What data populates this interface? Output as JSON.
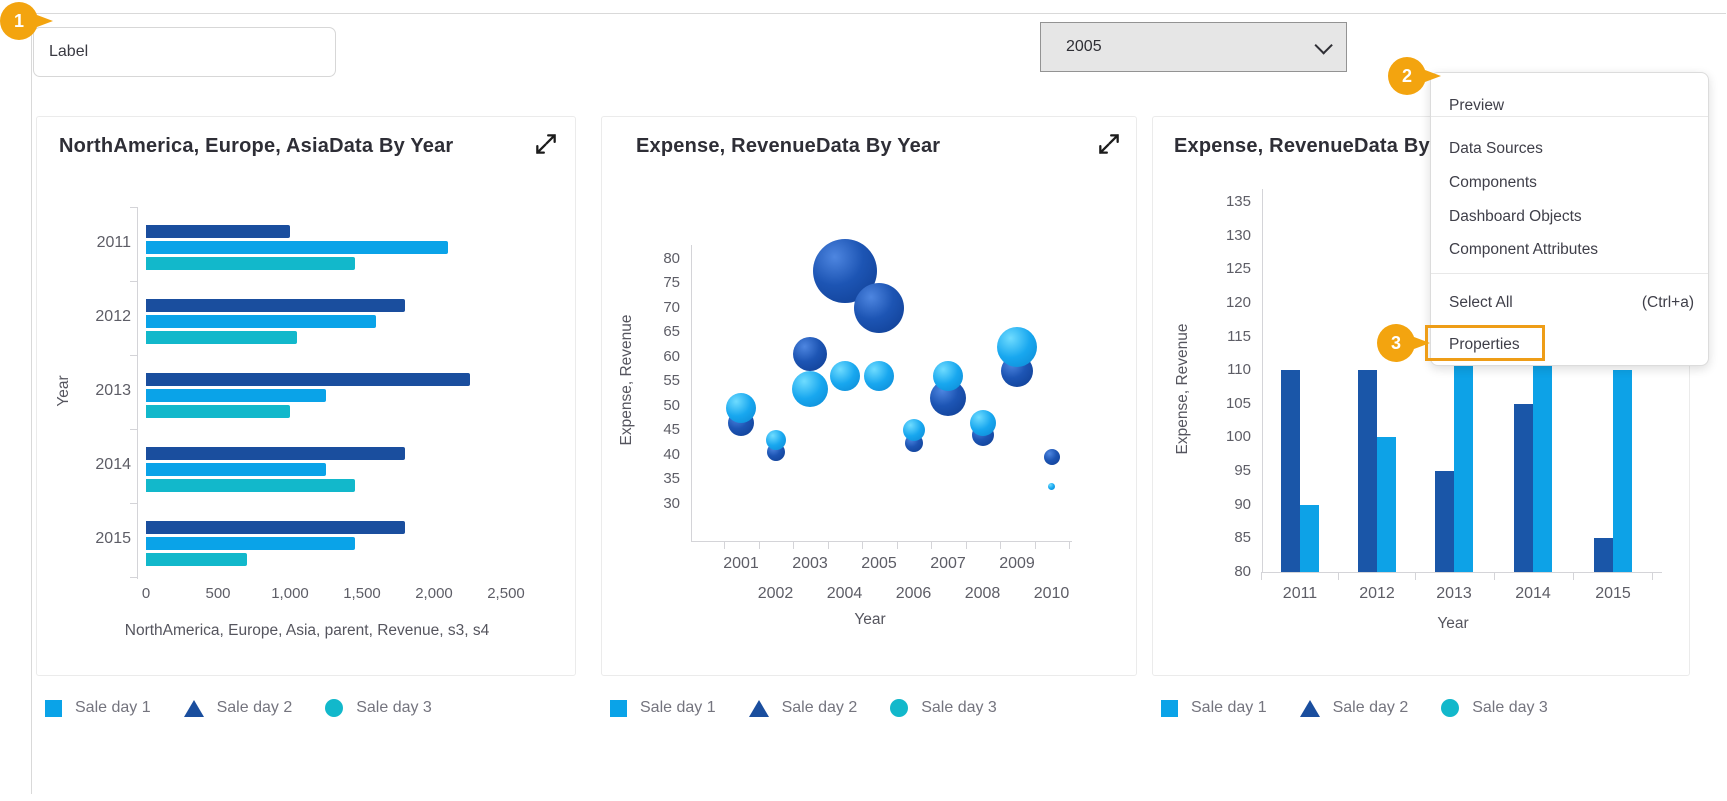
{
  "annotations": {
    "step1": "1",
    "step2": "2",
    "step3": "3"
  },
  "label_widget": {
    "text": "Label"
  },
  "year_dropdown": {
    "value": "2005",
    "options": [
      "2005"
    ]
  },
  "context_menu": {
    "items_top": [
      {
        "label": "Preview"
      }
    ],
    "items_middle": [
      {
        "label": "Data Sources"
      },
      {
        "label": "Components"
      },
      {
        "label": "Dashboard Objects"
      },
      {
        "label": "Component Attributes"
      }
    ],
    "select_all": {
      "label": "Select All",
      "shortcut": "(Ctrl+a)"
    },
    "properties": {
      "label": "Properties",
      "highlighted": true,
      "highlight_color": "#ee9d17"
    }
  },
  "legend": {
    "items": [
      {
        "label": "Sale day 1",
        "shape": "square",
        "color": "#0aa3e8"
      },
      {
        "label": "Sale day 2",
        "shape": "triangle",
        "color": "#1a4e9e"
      },
      {
        "label": "Sale day 3",
        "shape": "circle",
        "color": "#12b8cb"
      }
    ]
  },
  "chart_data": [
    {
      "type": "bar",
      "orientation": "horizontal",
      "title": "NorthAmerica, Europe, AsiaData By Year",
      "categories": [
        "2011",
        "2012",
        "2013",
        "2014",
        "2015"
      ],
      "series": [
        {
          "name": "Sale day 2",
          "color": "#1a4e9e",
          "values": [
            1000,
            1800,
            2250,
            1800,
            1800
          ]
        },
        {
          "name": "Sale day 1",
          "color": "#0aa3e8",
          "values": [
            2100,
            1600,
            1250,
            1250,
            1450
          ]
        },
        {
          "name": "Sale day 3",
          "color": "#12b8cb",
          "values": [
            1450,
            1050,
            1000,
            1450,
            700
          ]
        }
      ],
      "xlabel": "NorthAmerica, Europe, Asia, parent, Revenue, s3, s4",
      "ylabel": "Year",
      "xticks": [
        "0",
        "500",
        "1,000",
        "1,500",
        "2,000",
        "2,500"
      ],
      "xlim": [
        0,
        2500
      ],
      "grid": false,
      "legend_position": "bottom"
    },
    {
      "type": "bubble",
      "title": "Expense, RevenueData By Year",
      "xlabel": "Year",
      "ylabel": "Expense, Revenue",
      "x": [
        2001,
        2002,
        2003,
        2004,
        2005,
        2006,
        2007,
        2008,
        2009,
        2010
      ],
      "yticks": [
        80,
        75,
        70,
        65,
        60,
        55,
        50,
        45,
        40,
        35,
        30
      ],
      "ylim": [
        30,
        80
      ],
      "series": [
        {
          "name": "Sale day 2",
          "color": "#1a4e9e",
          "points": [
            {
              "x": 2001,
              "y": 46.5,
              "r": 13
            },
            {
              "x": 2002,
              "y": 40.5,
              "r": 9
            },
            {
              "x": 2003,
              "y": 60.5,
              "r": 17
            },
            {
              "x": 2004,
              "y": 77.5,
              "r": 32
            },
            {
              "x": 2005,
              "y": 70,
              "r": 25
            },
            {
              "x": 2006,
              "y": 42.5,
              "r": 9
            },
            {
              "x": 2007,
              "y": 51.5,
              "r": 18
            },
            {
              "x": 2008,
              "y": 44,
              "r": 11
            },
            {
              "x": 2009,
              "y": 57,
              "r": 16
            },
            {
              "x": 2010,
              "y": 39.5,
              "r": 8
            }
          ]
        },
        {
          "name": "Sale day 1",
          "color": "#0aa3e8",
          "points": [
            {
              "x": 2001,
              "y": 49.5,
              "r": 15
            },
            {
              "x": 2002,
              "y": 43,
              "r": 10
            },
            {
              "x": 2003,
              "y": 53.5,
              "r": 18
            },
            {
              "x": 2004,
              "y": 56,
              "r": 15
            },
            {
              "x": 2005,
              "y": 56,
              "r": 15
            },
            {
              "x": 2006,
              "y": 45,
              "r": 11
            },
            {
              "x": 2007,
              "y": 56,
              "r": 15
            },
            {
              "x": 2008,
              "y": 46.5,
              "r": 13
            },
            {
              "x": 2009,
              "y": 62,
              "r": 20
            },
            {
              "x": 2010,
              "y": 33.5,
              "r": 3.5
            }
          ]
        }
      ],
      "grid": false,
      "legend_position": "bottom"
    },
    {
      "type": "bar",
      "orientation": "vertical",
      "title": "Expense, RevenueData By Year",
      "title_note": "right part of title hidden behind context menu",
      "categories": [
        "2011",
        "2012",
        "2013",
        "2014",
        "2015"
      ],
      "series": [
        {
          "name": "Sale day 2",
          "color": "#1a56a8",
          "values": [
            110,
            110,
            95,
            105,
            85
          ]
        },
        {
          "name": "Sale day 1",
          "color": "#0da2e7",
          "values": [
            90,
            100,
            115,
            115,
            110
          ],
          "note": "2013 and 2014 bar tops hidden behind context menu"
        }
      ],
      "xlabel": "Year",
      "ylabel": "Expense, Revenue",
      "yticks": [
        135,
        130,
        125,
        120,
        115,
        110,
        105,
        100,
        95,
        90,
        85,
        80
      ],
      "ylim": [
        80,
        137
      ],
      "grid": false,
      "legend_position": "bottom"
    }
  ]
}
